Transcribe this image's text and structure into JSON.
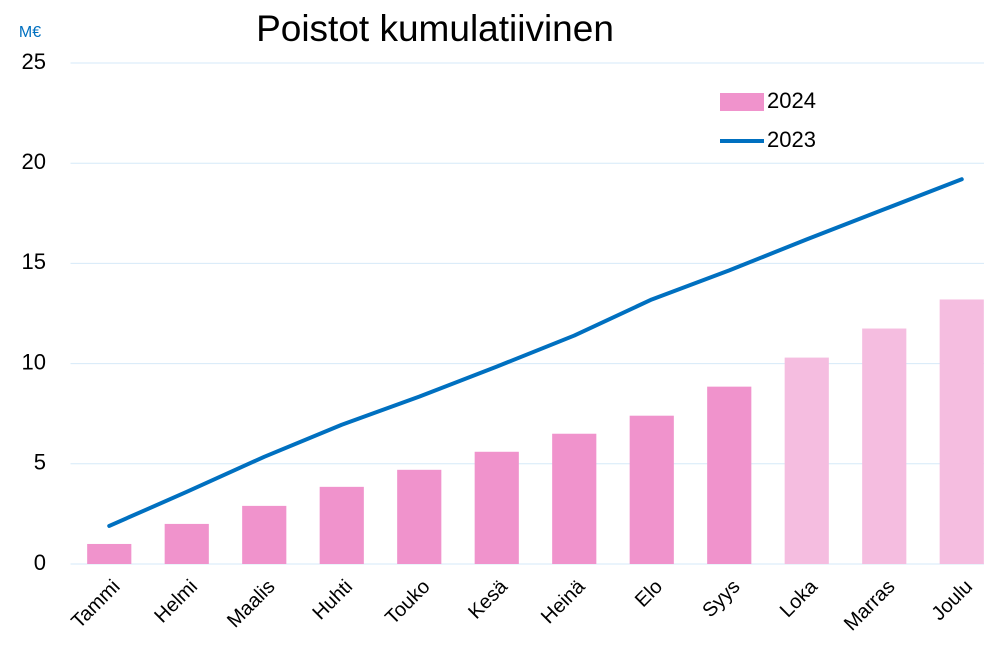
{
  "chart_data": {
    "type": "bar",
    "title": "Poistot kumulatiivinen",
    "y_unit": "M€",
    "categories": [
      "Tammi",
      "Helmi",
      "Maalis",
      "Huhti",
      "Touko",
      "Kesä",
      "Heinä",
      "Elo",
      "Syys",
      "Loka",
      "Marras",
      "Joulu"
    ],
    "series": [
      {
        "name": "2024",
        "type": "bar",
        "color": "#f093cc",
        "colors": [
          "#f093cc",
          "#f093cc",
          "#f093cc",
          "#f093cc",
          "#f093cc",
          "#f093cc",
          "#f093cc",
          "#f093cc",
          "#f093cc",
          "#f5bde0",
          "#f5bde0",
          "#f5bde0"
        ],
        "values": [
          1.0,
          2.0,
          2.9,
          3.85,
          4.7,
          5.6,
          6.5,
          7.4,
          8.85,
          10.3,
          11.75,
          13.2
        ]
      },
      {
        "name": "2023",
        "type": "line",
        "color": "#0070c0",
        "values": [
          1.9,
          3.6,
          5.35,
          6.95,
          8.35,
          9.85,
          11.4,
          13.2,
          14.65,
          16.2,
          17.7,
          19.2
        ]
      }
    ],
    "ylim": [
      0,
      25
    ],
    "yticks": [
      0,
      5,
      10,
      15,
      20,
      25
    ],
    "grid": true,
    "legend": "top-right"
  }
}
